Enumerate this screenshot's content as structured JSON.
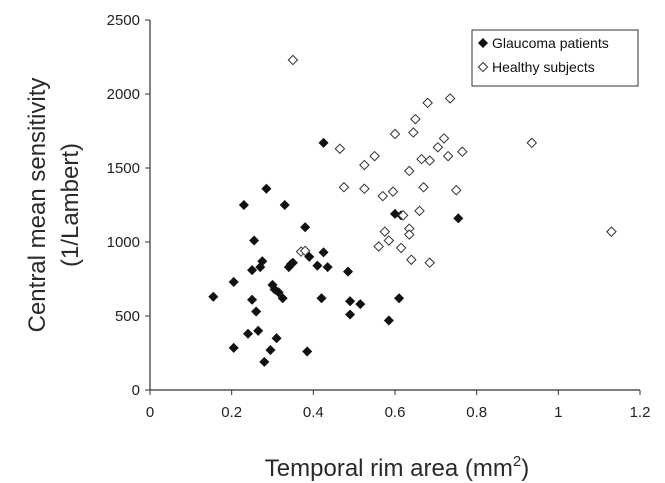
{
  "chart_data": {
    "type": "scatter",
    "title": "",
    "xlabel": "Temporal rim area (mm",
    "xlabel_sup": "2",
    "xlabel_suffix": ")",
    "ylabel_line1": "Central mean sensitivity",
    "ylabel_line2": "(1/Lambert)",
    "xlim": [
      0,
      1.2
    ],
    "ylim": [
      0,
      2500
    ],
    "xticks": [
      0,
      0.2,
      0.4,
      0.6,
      0.8,
      1,
      1.2
    ],
    "xtick_labels": [
      "0",
      "0.2",
      "0.4",
      "0.6",
      "0.8",
      "1",
      "1.2"
    ],
    "yticks": [
      0,
      500,
      1000,
      1500,
      2000,
      2500
    ],
    "ytick_labels": [
      "0",
      "500",
      "1000",
      "1500",
      "2000",
      "2500"
    ],
    "grid": false,
    "legend_position": "top-right",
    "series": [
      {
        "name": "Glaucoma patients",
        "marker": "filled-diamond",
        "color": "#111111",
        "points": [
          [
            0.155,
            630
          ],
          [
            0.205,
            730
          ],
          [
            0.205,
            285
          ],
          [
            0.23,
            1250
          ],
          [
            0.24,
            380
          ],
          [
            0.25,
            810
          ],
          [
            0.25,
            610
          ],
          [
            0.255,
            1010
          ],
          [
            0.26,
            530
          ],
          [
            0.265,
            400
          ],
          [
            0.27,
            830
          ],
          [
            0.275,
            870
          ],
          [
            0.28,
            190
          ],
          [
            0.285,
            1360
          ],
          [
            0.295,
            270
          ],
          [
            0.3,
            710
          ],
          [
            0.305,
            680
          ],
          [
            0.31,
            350
          ],
          [
            0.315,
            660
          ],
          [
            0.325,
            620
          ],
          [
            0.33,
            1250
          ],
          [
            0.34,
            830
          ],
          [
            0.345,
            850
          ],
          [
            0.35,
            860
          ],
          [
            0.38,
            1100
          ],
          [
            0.385,
            260
          ],
          [
            0.39,
            900
          ],
          [
            0.41,
            840
          ],
          [
            0.42,
            620
          ],
          [
            0.425,
            930
          ],
          [
            0.425,
            1670
          ],
          [
            0.435,
            830
          ],
          [
            0.485,
            800
          ],
          [
            0.49,
            510
          ],
          [
            0.49,
            600
          ],
          [
            0.515,
            580
          ],
          [
            0.585,
            470
          ],
          [
            0.6,
            1190
          ],
          [
            0.61,
            620
          ],
          [
            0.615,
            1180
          ],
          [
            0.755,
            1160
          ]
        ]
      },
      {
        "name": "Healthy subjects",
        "marker": "open-diamond",
        "color": "#111111",
        "points": [
          [
            0.35,
            2230
          ],
          [
            0.37,
            935
          ],
          [
            0.38,
            940
          ],
          [
            0.465,
            1630
          ],
          [
            0.475,
            1370
          ],
          [
            0.525,
            1360
          ],
          [
            0.525,
            1520
          ],
          [
            0.55,
            1580
          ],
          [
            0.56,
            970
          ],
          [
            0.57,
            1310
          ],
          [
            0.575,
            1070
          ],
          [
            0.585,
            1010
          ],
          [
            0.595,
            1340
          ],
          [
            0.6,
            1730
          ],
          [
            0.615,
            960
          ],
          [
            0.62,
            1180
          ],
          [
            0.635,
            1480
          ],
          [
            0.635,
            1090
          ],
          [
            0.635,
            1050
          ],
          [
            0.64,
            880
          ],
          [
            0.645,
            1740
          ],
          [
            0.65,
            1830
          ],
          [
            0.66,
            1210
          ],
          [
            0.665,
            1560
          ],
          [
            0.67,
            1370
          ],
          [
            0.68,
            1940
          ],
          [
            0.685,
            1550
          ],
          [
            0.685,
            860
          ],
          [
            0.705,
            1640
          ],
          [
            0.72,
            1700
          ],
          [
            0.73,
            1580
          ],
          [
            0.735,
            1970
          ],
          [
            0.75,
            1350
          ],
          [
            0.765,
            1610
          ],
          [
            0.935,
            1670
          ],
          [
            1.13,
            1070
          ]
        ]
      }
    ]
  }
}
